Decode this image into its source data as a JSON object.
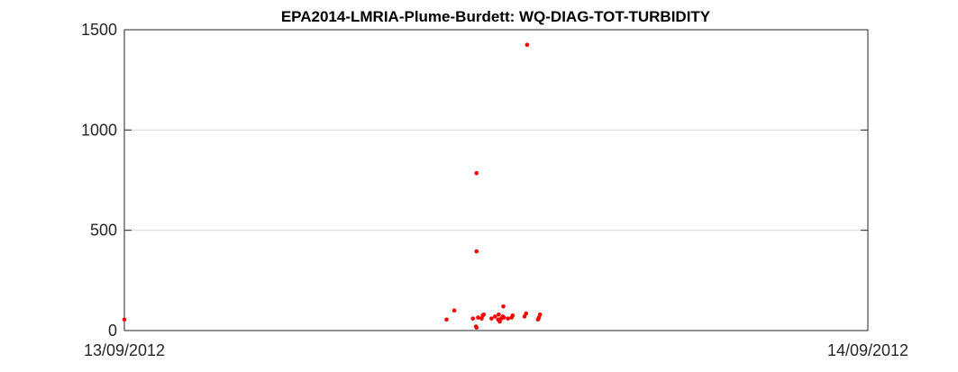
{
  "chart_data": {
    "type": "scatter",
    "title": "EPA2014-LMRIA-Plume-Burdett: WQ-DIAG-TOT-TURBIDITY",
    "xlabel": "",
    "ylabel": "",
    "x_tick_labels": [
      "13/09/2012",
      "14/09/2012"
    ],
    "xlim": [
      "2012-09-13T00:00",
      "2012-09-14T00:00"
    ],
    "ylim": [
      0,
      1500
    ],
    "y_ticks": [
      0,
      500,
      1000,
      1500
    ],
    "grid": "y-major",
    "legend": "none",
    "point_color": "#ff0000",
    "points": [
      {
        "x": "2012-09-13T00:00",
        "y": 55
      },
      {
        "x": "2012-09-13T10:24",
        "y": 55
      },
      {
        "x": "2012-09-13T10:39",
        "y": 100
      },
      {
        "x": "2012-09-13T11:15",
        "y": 60
      },
      {
        "x": "2012-09-13T11:21",
        "y": 20
      },
      {
        "x": "2012-09-13T11:22",
        "y": 15
      },
      {
        "x": "2012-09-13T11:22",
        "y": 395
      },
      {
        "x": "2012-09-13T11:22",
        "y": 785
      },
      {
        "x": "2012-09-13T11:25",
        "y": 65
      },
      {
        "x": "2012-09-13T11:32",
        "y": 60
      },
      {
        "x": "2012-09-13T11:34",
        "y": 75
      },
      {
        "x": "2012-09-13T11:36",
        "y": 80
      },
      {
        "x": "2012-09-13T11:51",
        "y": 60
      },
      {
        "x": "2012-09-13T11:58",
        "y": 70
      },
      {
        "x": "2012-09-13T12:04",
        "y": 55
      },
      {
        "x": "2012-09-13T12:05",
        "y": 80
      },
      {
        "x": "2012-09-13T12:07",
        "y": 45
      },
      {
        "x": "2012-09-13T12:10",
        "y": 60
      },
      {
        "x": "2012-09-13T12:13",
        "y": 70
      },
      {
        "x": "2012-09-13T12:14",
        "y": 120
      },
      {
        "x": "2012-09-13T12:15",
        "y": 65
      },
      {
        "x": "2012-09-13T12:23",
        "y": 60
      },
      {
        "x": "2012-09-13T12:30",
        "y": 65
      },
      {
        "x": "2012-09-13T12:32",
        "y": 75
      },
      {
        "x": "2012-09-13T12:55",
        "y": 70
      },
      {
        "x": "2012-09-13T12:58",
        "y": 85
      },
      {
        "x": "2012-09-13T13:00",
        "y": 1425
      },
      {
        "x": "2012-09-13T13:21",
        "y": 55
      },
      {
        "x": "2012-09-13T13:23",
        "y": 65
      },
      {
        "x": "2012-09-13T13:25",
        "y": 80
      }
    ]
  }
}
